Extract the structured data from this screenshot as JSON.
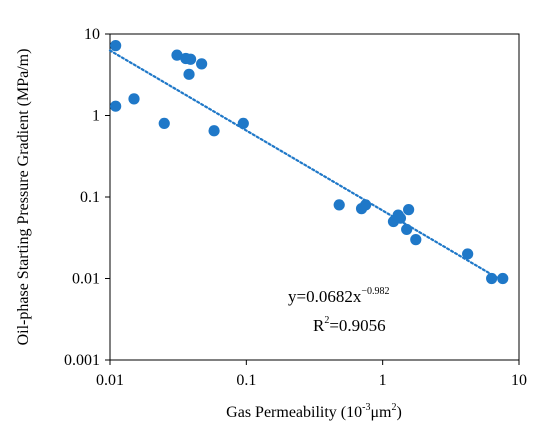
{
  "chart_data": {
    "type": "scatter",
    "title": "",
    "xlabel": "Gas Permeability (10",
    "xlabel_exp": "-3",
    "xlabel_unit": "μm",
    "xlabel_unit_exp": "2",
    "xlabel_close": ")",
    "ylabel": "Oil-phase Starting Pressure Gradient (MPa/m)",
    "x_scale": "log",
    "y_scale": "log",
    "xlim": [
      0.01,
      10
    ],
    "ylim": [
      0.001,
      10
    ],
    "x_ticks": [
      0.01,
      0.1,
      1,
      10
    ],
    "x_tick_labels": [
      "0.01",
      "0.1",
      "1",
      "10"
    ],
    "y_ticks": [
      0.001,
      0.01,
      0.1,
      1,
      10
    ],
    "y_tick_labels": [
      "0.001",
      "0.01",
      "0.1",
      "1",
      "10"
    ],
    "grid": false,
    "marker_color": "#1f78c8",
    "trend_color": "#1f78c8",
    "series": [
      {
        "points": [
          [
            0.011,
            7.2
          ],
          [
            0.011,
            1.3
          ],
          [
            0.015,
            1.6
          ],
          [
            0.025,
            0.8
          ],
          [
            0.031,
            5.5
          ],
          [
            0.036,
            5.0
          ],
          [
            0.039,
            4.9
          ],
          [
            0.038,
            3.2
          ],
          [
            0.047,
            4.3
          ],
          [
            0.058,
            0.65
          ],
          [
            0.095,
            0.8
          ],
          [
            0.48,
            0.08
          ],
          [
            0.7,
            0.072
          ],
          [
            0.75,
            0.08
          ],
          [
            1.2,
            0.05
          ],
          [
            1.3,
            0.06
          ],
          [
            1.35,
            0.055
          ],
          [
            1.5,
            0.04
          ],
          [
            1.55,
            0.07
          ],
          [
            1.75,
            0.03
          ],
          [
            4.2,
            0.02
          ],
          [
            6.3,
            0.01
          ],
          [
            7.6,
            0.01
          ]
        ]
      }
    ],
    "trendline": {
      "type": "power",
      "a": 0.0682,
      "b": -0.982,
      "x_range": [
        0.01,
        7.6
      ]
    },
    "equation": {
      "main": "y=0.0682x",
      "exp": "−0.982",
      "r2_prefix": "R",
      "r2_exp": "2",
      "r2_value": "=0.9056"
    }
  }
}
